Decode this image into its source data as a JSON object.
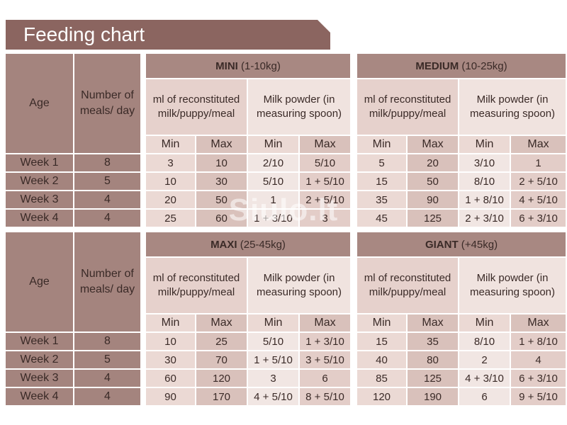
{
  "title": "Feeding chart",
  "headers": {
    "age": "Age",
    "meals": "Number of meals/ day",
    "ml": "ml of reconstituted milk/puppy/meal",
    "powder": "Milk powder (in measuring spoon)",
    "min": "Min",
    "max": "Max"
  },
  "watermark": "Siulo.lt",
  "tables": [
    {
      "groups": [
        {
          "name": "MINI",
          "range": "(1-10kg)"
        },
        {
          "name": "MEDIUM",
          "range": "(10-25kg)"
        }
      ],
      "rows": [
        {
          "age": "Week 1",
          "meals": "8",
          "cells": [
            "3",
            "10",
            "2/10",
            "5/10",
            "5",
            "20",
            "3/10",
            "1"
          ]
        },
        {
          "age": "Week 2",
          "meals": "5",
          "cells": [
            "10",
            "30",
            "5/10",
            "1 + 5/10",
            "15",
            "50",
            "8/10",
            "2 + 5/10"
          ]
        },
        {
          "age": "Week 3",
          "meals": "4",
          "cells": [
            "20",
            "50",
            "1",
            "2 + 5/10",
            "35",
            "90",
            "1 + 8/10",
            "4 + 5/10"
          ]
        },
        {
          "age": "Week 4",
          "meals": "4",
          "cells": [
            "25",
            "60",
            "1 + 3/10",
            "3",
            "45",
            "125",
            "2 + 3/10",
            "6 + 3/10"
          ]
        }
      ]
    },
    {
      "groups": [
        {
          "name": "MAXI",
          "range": "(25-45kg)"
        },
        {
          "name": "GIANT",
          "range": "(+45kg)"
        }
      ],
      "rows": [
        {
          "age": "Week 1",
          "meals": "8",
          "cells": [
            "10",
            "25",
            "5/10",
            "1 + 3/10",
            "15",
            "35",
            "8/10",
            "1 + 8/10"
          ]
        },
        {
          "age": "Week 2",
          "meals": "5",
          "cells": [
            "30",
            "70",
            "1 + 5/10",
            "3 + 5/10",
            "40",
            "80",
            "2",
            "4"
          ]
        },
        {
          "age": "Week 3",
          "meals": "4",
          "cells": [
            "60",
            "120",
            "3",
            "6",
            "85",
            "125",
            "4 + 3/10",
            "6 + 3/10"
          ]
        },
        {
          "age": "Week 4",
          "meals": "4",
          "cells": [
            "90",
            "170",
            "4 + 5/10",
            "8 + 5/10",
            "120",
            "190",
            "6",
            "9 + 5/10"
          ]
        }
      ]
    }
  ]
}
